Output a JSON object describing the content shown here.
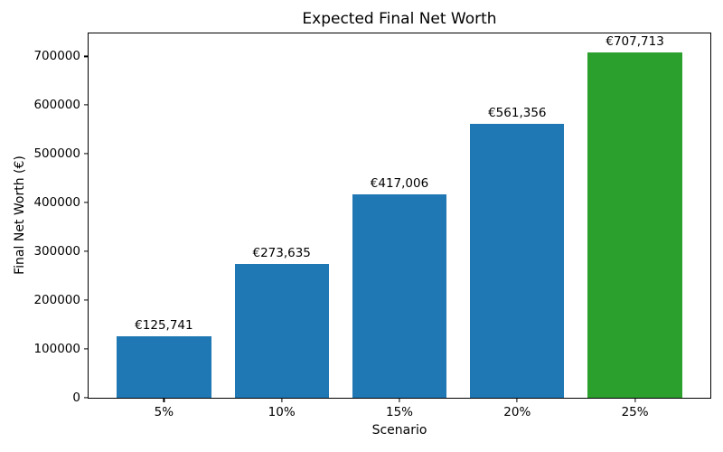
{
  "chart_data": {
    "type": "bar",
    "title": "Expected Final Net Worth",
    "xlabel": "Scenario",
    "ylabel": "Final Net Worth (€)",
    "categories": [
      "5%",
      "10%",
      "15%",
      "20%",
      "25%"
    ],
    "values": [
      125741,
      273635,
      417006,
      561356,
      707713
    ],
    "value_labels": [
      "€125,741",
      "€273,635",
      "€417,006",
      "€561,356",
      "€707,713"
    ],
    "bar_colors": [
      "#1f77b4",
      "#1f77b4",
      "#1f77b4",
      "#1f77b4",
      "#2ca02c"
    ],
    "ylim": [
      0,
      747000
    ],
    "yticks": [
      0,
      100000,
      200000,
      300000,
      400000,
      500000,
      600000,
      700000
    ],
    "ytick_labels": [
      "0",
      "100000",
      "200000",
      "300000",
      "400000",
      "500000",
      "600000",
      "700000"
    ],
    "grid": false,
    "legend": null
  }
}
